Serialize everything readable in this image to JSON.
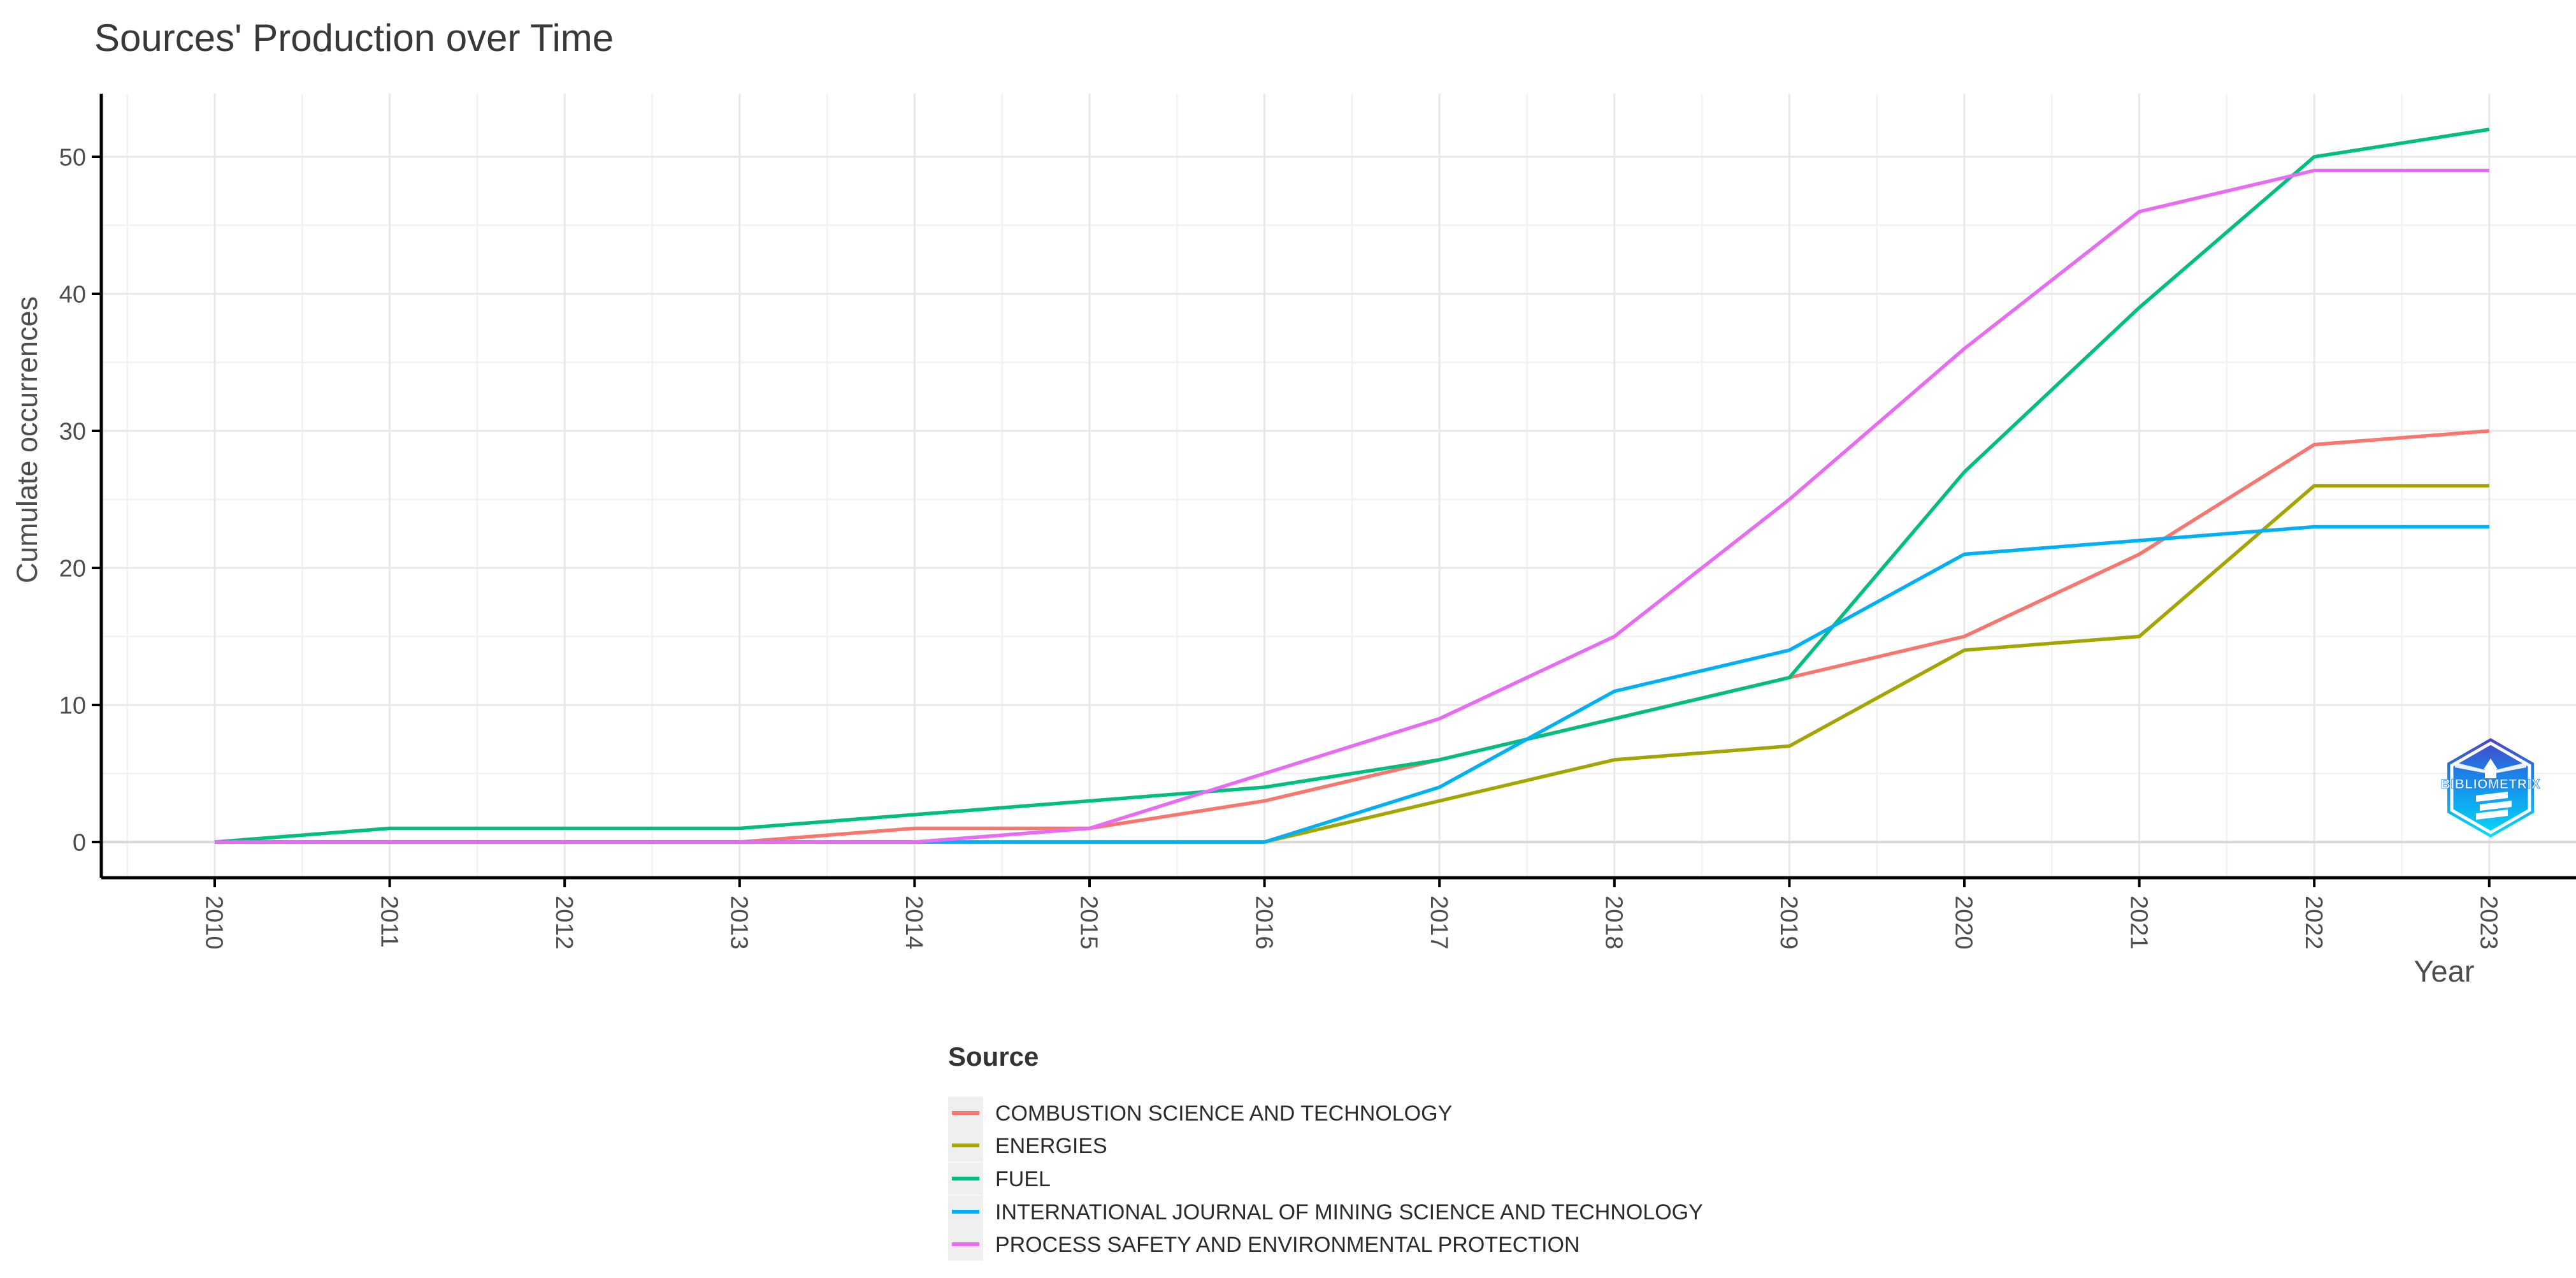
{
  "title": "Sources' Production over Time",
  "logo": {
    "text": "BIBLIOMETRIX"
  },
  "chart_data": {
    "type": "line",
    "x": [
      2010,
      2011,
      2012,
      2013,
      2014,
      2015,
      2016,
      2017,
      2018,
      2019,
      2020,
      2021,
      2022,
      2023
    ],
    "xlabel": "Year",
    "ylabel": "Cumulate occurrences",
    "ylim": [
      0,
      52
    ],
    "yticks": [
      0,
      10,
      20,
      30,
      40,
      50
    ],
    "grid": "on",
    "legend_title": "Source",
    "legend_position": "bottom",
    "series": [
      {
        "name": "COMBUSTION SCIENCE AND TECHNOLOGY",
        "color": "#F8766D",
        "values": [
          0,
          0,
          0,
          0,
          1,
          1,
          3,
          6,
          9,
          12,
          15,
          21,
          29,
          30
        ]
      },
      {
        "name": "ENERGIES",
        "color": "#A3A500",
        "values": [
          0,
          0,
          0,
          0,
          0,
          0,
          0,
          3,
          6,
          7,
          14,
          15,
          26,
          26
        ]
      },
      {
        "name": "FUEL",
        "color": "#00BF7D",
        "values": [
          0,
          1,
          1,
          1,
          2,
          3,
          4,
          6,
          9,
          12,
          27,
          39,
          50,
          52
        ]
      },
      {
        "name": "INTERNATIONAL JOURNAL OF MINING SCIENCE AND TECHNOLOGY",
        "color": "#00B0F6",
        "values": [
          0,
          0,
          0,
          0,
          0,
          0,
          0,
          4,
          11,
          14,
          21,
          22,
          23,
          23
        ]
      },
      {
        "name": "PROCESS SAFETY AND ENVIRONMENTAL PROTECTION",
        "color": "#E76BF3",
        "values": [
          0,
          0,
          0,
          0,
          0,
          1,
          5,
          9,
          15,
          25,
          36,
          46,
          49,
          49
        ]
      }
    ]
  }
}
